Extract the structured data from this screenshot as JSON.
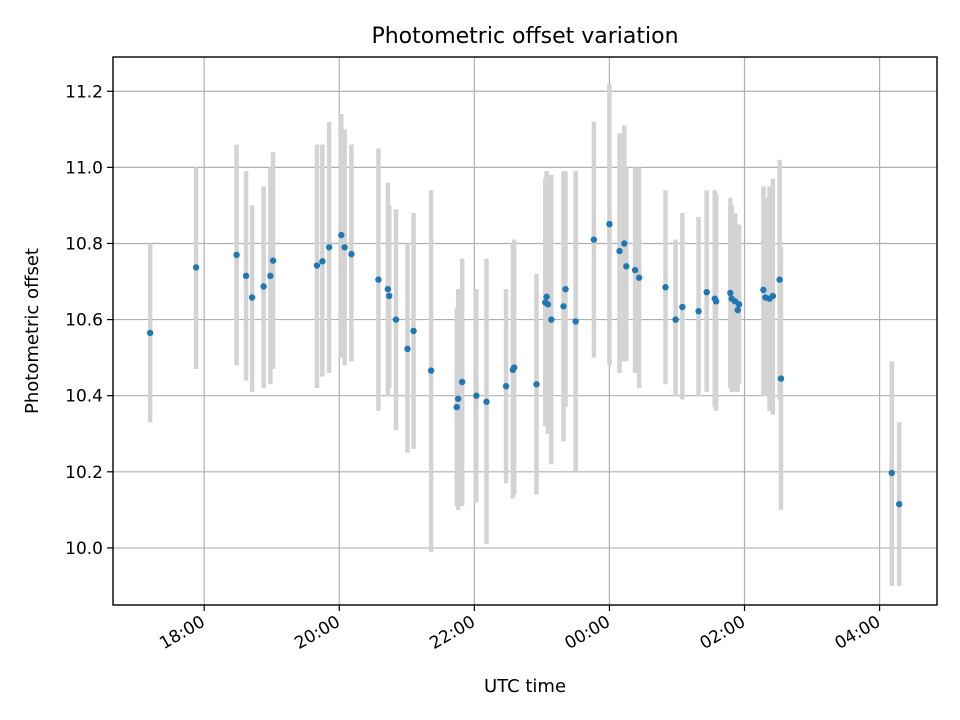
{
  "chart_data": {
    "type": "scatter",
    "title": "Photometric offset variation",
    "xlabel": "UTC time",
    "ylabel": "Photometric offset",
    "x_unit": "hours since 00:00 UTC (negative = previous day)",
    "xlim": [
      -7.35,
      4.85
    ],
    "ylim": [
      9.85,
      11.29
    ],
    "xticks": [
      {
        "value": -6,
        "label": "18:00"
      },
      {
        "value": -4,
        "label": "20:00"
      },
      {
        "value": -2,
        "label": "22:00"
      },
      {
        "value": 0,
        "label": "00:00"
      },
      {
        "value": 2,
        "label": "02:00"
      },
      {
        "value": 4,
        "label": "04:00"
      }
    ],
    "yticks": [
      {
        "value": 10.0,
        "label": "10.0"
      },
      {
        "value": 10.2,
        "label": "10.2"
      },
      {
        "value": 10.4,
        "label": "10.4"
      },
      {
        "value": 10.6,
        "label": "10.6"
      },
      {
        "value": 10.8,
        "label": "10.8"
      },
      {
        "value": 11.0,
        "label": "11.0"
      },
      {
        "value": 11.2,
        "label": "11.2"
      }
    ],
    "grid": true,
    "colors": {
      "marker": "#1f77b4",
      "errorbar": "#d3d3d3"
    },
    "points": [
      {
        "x": -6.8,
        "y": 10.565,
        "lo": 10.33,
        "hi": 10.8
      },
      {
        "x": -6.12,
        "y": 10.737,
        "lo": 10.47,
        "hi": 11.0
      },
      {
        "x": -5.52,
        "y": 10.77,
        "lo": 10.48,
        "hi": 11.06
      },
      {
        "x": -5.38,
        "y": 10.715,
        "lo": 10.44,
        "hi": 10.99
      },
      {
        "x": -5.29,
        "y": 10.658,
        "lo": 10.41,
        "hi": 10.9
      },
      {
        "x": -5.12,
        "y": 10.687,
        "lo": 10.42,
        "hi": 10.95
      },
      {
        "x": -5.02,
        "y": 10.715,
        "lo": 10.43,
        "hi": 11.0
      },
      {
        "x": -4.98,
        "y": 10.755,
        "lo": 10.47,
        "hi": 11.04
      },
      {
        "x": -4.33,
        "y": 10.742,
        "lo": 10.42,
        "hi": 11.06
      },
      {
        "x": -4.25,
        "y": 10.753,
        "lo": 10.45,
        "hi": 11.06
      },
      {
        "x": -4.15,
        "y": 10.79,
        "lo": 10.46,
        "hi": 11.12
      },
      {
        "x": -3.97,
        "y": 10.822,
        "lo": 10.5,
        "hi": 11.14
      },
      {
        "x": -3.92,
        "y": 10.79,
        "lo": 10.48,
        "hi": 11.1
      },
      {
        "x": -3.82,
        "y": 10.772,
        "lo": 10.49,
        "hi": 11.06
      },
      {
        "x": -3.42,
        "y": 10.705,
        "lo": 10.36,
        "hi": 11.05
      },
      {
        "x": -3.28,
        "y": 10.68,
        "lo": 10.4,
        "hi": 10.96
      },
      {
        "x": -3.26,
        "y": 10.662,
        "lo": 10.42,
        "hi": 10.9
      },
      {
        "x": -3.16,
        "y": 10.6,
        "lo": 10.31,
        "hi": 10.89
      },
      {
        "x": -2.99,
        "y": 10.523,
        "lo": 10.25,
        "hi": 10.8
      },
      {
        "x": -2.9,
        "y": 10.57,
        "lo": 10.26,
        "hi": 10.88
      },
      {
        "x": -2.64,
        "y": 10.466,
        "lo": 9.99,
        "hi": 10.94
      },
      {
        "x": -2.26,
        "y": 10.37,
        "lo": 10.11,
        "hi": 10.63
      },
      {
        "x": -2.24,
        "y": 10.392,
        "lo": 10.1,
        "hi": 10.68
      },
      {
        "x": -2.18,
        "y": 10.436,
        "lo": 10.11,
        "hi": 10.76
      },
      {
        "x": -1.97,
        "y": 10.4,
        "lo": 10.12,
        "hi": 10.68
      },
      {
        "x": -1.82,
        "y": 10.384,
        "lo": 10.01,
        "hi": 10.76
      },
      {
        "x": -1.53,
        "y": 10.425,
        "lo": 10.17,
        "hi": 10.68
      },
      {
        "x": -1.43,
        "y": 10.468,
        "lo": 10.13,
        "hi": 10.8
      },
      {
        "x": -1.41,
        "y": 10.474,
        "lo": 10.14,
        "hi": 10.81
      },
      {
        "x": -1.08,
        "y": 10.43,
        "lo": 10.14,
        "hi": 10.72
      },
      {
        "x": -0.95,
        "y": 10.645,
        "lo": 10.32,
        "hi": 10.97
      },
      {
        "x": -0.93,
        "y": 10.66,
        "lo": 10.33,
        "hi": 10.99
      },
      {
        "x": -0.91,
        "y": 10.64,
        "lo": 10.3,
        "hi": 10.98
      },
      {
        "x": -0.86,
        "y": 10.6,
        "lo": 10.22,
        "hi": 10.98
      },
      {
        "x": -0.68,
        "y": 10.635,
        "lo": 10.28,
        "hi": 10.99
      },
      {
        "x": -0.65,
        "y": 10.68,
        "lo": 10.37,
        "hi": 10.99
      },
      {
        "x": -0.5,
        "y": 10.595,
        "lo": 10.2,
        "hi": 10.99
      },
      {
        "x": -0.23,
        "y": 10.81,
        "lo": 10.5,
        "hi": 11.12
      },
      {
        "x": 0.0,
        "y": 10.851,
        "lo": 10.48,
        "hi": 11.22
      },
      {
        "x": 0.15,
        "y": 10.78,
        "lo": 10.46,
        "hi": 11.09
      },
      {
        "x": 0.22,
        "y": 10.8,
        "lo": 10.49,
        "hi": 11.11
      },
      {
        "x": 0.25,
        "y": 10.74,
        "lo": 10.49,
        "hi": 11.0
      },
      {
        "x": 0.38,
        "y": 10.73,
        "lo": 10.46,
        "hi": 11.0
      },
      {
        "x": 0.44,
        "y": 10.71,
        "lo": 10.42,
        "hi": 11.0
      },
      {
        "x": 0.83,
        "y": 10.685,
        "lo": 10.43,
        "hi": 10.94
      },
      {
        "x": 0.98,
        "y": 10.6,
        "lo": 10.4,
        "hi": 10.81
      },
      {
        "x": 1.08,
        "y": 10.633,
        "lo": 10.39,
        "hi": 10.88
      },
      {
        "x": 1.32,
        "y": 10.622,
        "lo": 10.4,
        "hi": 10.87
      },
      {
        "x": 1.44,
        "y": 10.672,
        "lo": 10.41,
        "hi": 10.94
      },
      {
        "x": 1.56,
        "y": 10.655,
        "lo": 10.37,
        "hi": 10.94
      },
      {
        "x": 1.58,
        "y": 10.648,
        "lo": 10.36,
        "hi": 10.93
      },
      {
        "x": 1.79,
        "y": 10.67,
        "lo": 10.42,
        "hi": 10.92
      },
      {
        "x": 1.81,
        "y": 10.655,
        "lo": 10.41,
        "hi": 10.9
      },
      {
        "x": 1.86,
        "y": 10.648,
        "lo": 10.41,
        "hi": 10.88
      },
      {
        "x": 1.9,
        "y": 10.625,
        "lo": 10.41,
        "hi": 10.84
      },
      {
        "x": 1.92,
        "y": 10.64,
        "lo": 10.43,
        "hi": 10.85
      },
      {
        "x": 2.28,
        "y": 10.678,
        "lo": 10.4,
        "hi": 10.95
      },
      {
        "x": 2.31,
        "y": 10.658,
        "lo": 10.4,
        "hi": 10.92
      },
      {
        "x": 2.37,
        "y": 10.655,
        "lo": 10.36,
        "hi": 10.95
      },
      {
        "x": 2.42,
        "y": 10.662,
        "lo": 10.35,
        "hi": 10.97
      },
      {
        "x": 2.52,
        "y": 10.705,
        "lo": 10.39,
        "hi": 11.02
      },
      {
        "x": 2.54,
        "y": 10.445,
        "lo": 10.1,
        "hi": 10.79
      },
      {
        "x": 4.18,
        "y": 10.197,
        "lo": 9.9,
        "hi": 10.49
      },
      {
        "x": 4.29,
        "y": 10.115,
        "lo": 9.9,
        "hi": 10.33
      }
    ]
  }
}
